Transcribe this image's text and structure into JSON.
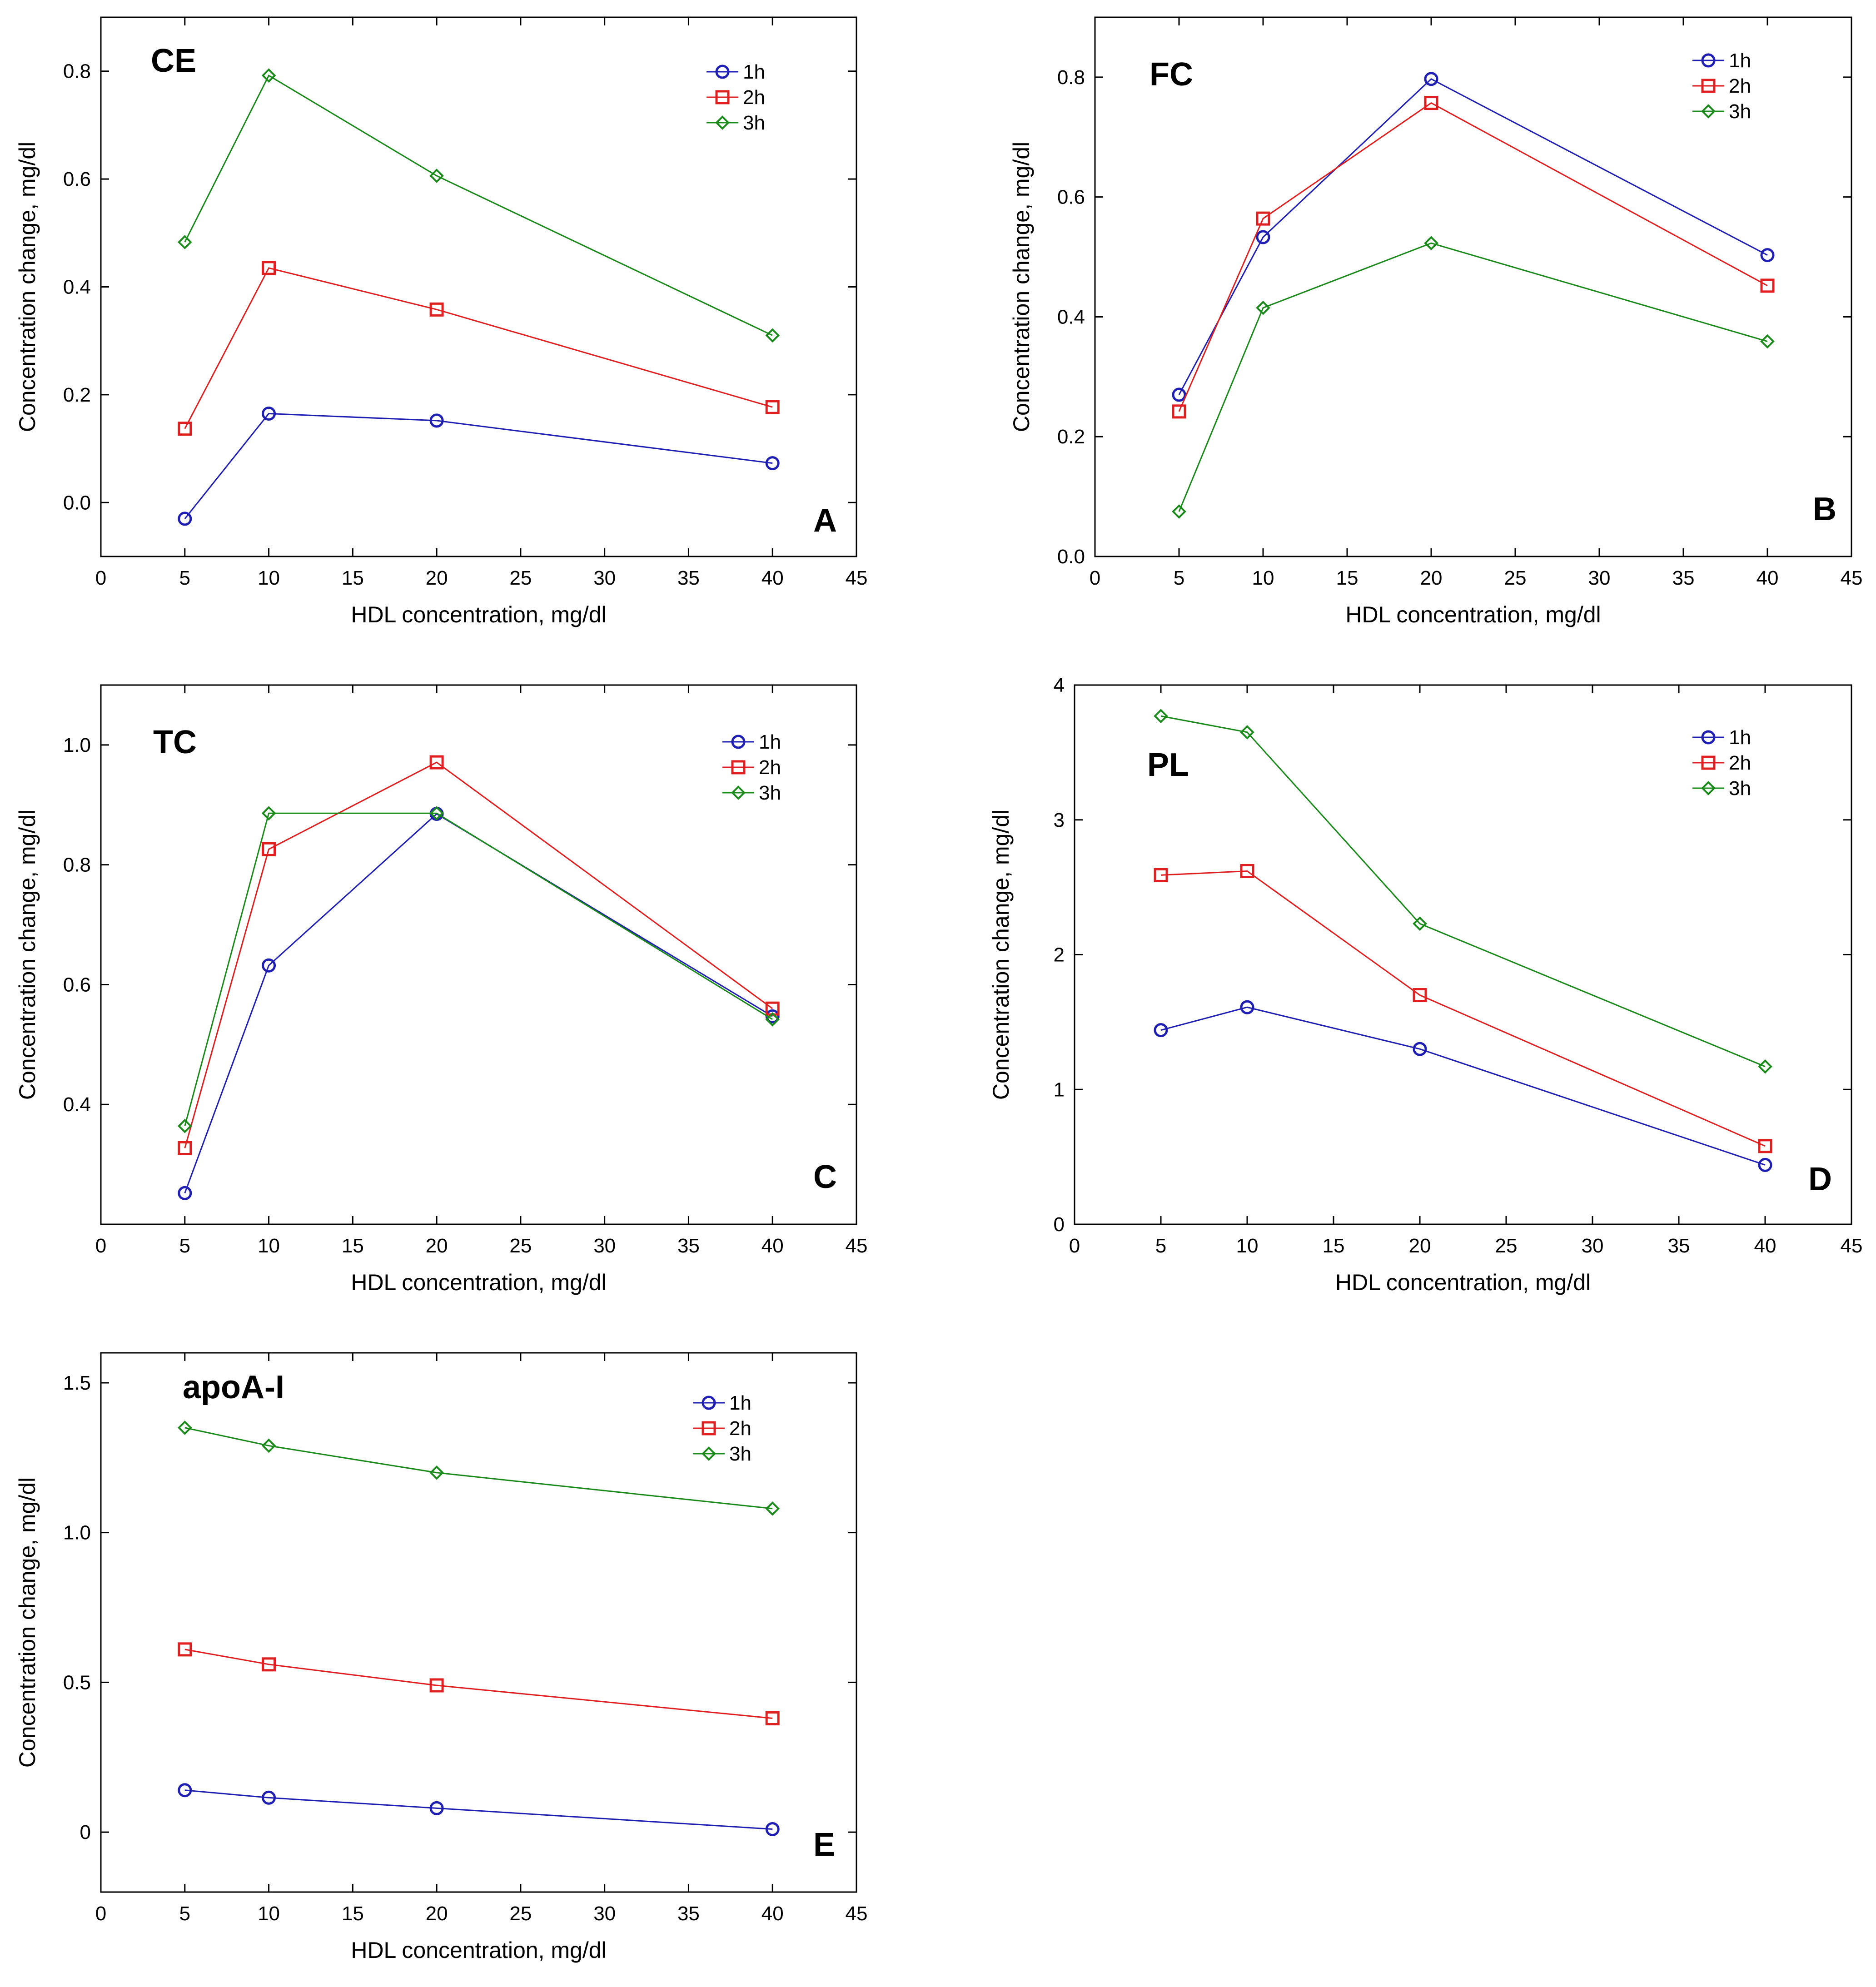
{
  "series_colors": {
    "1h": "#1f1fb4",
    "2h": "#e02020",
    "3h": "#1a8a1a"
  },
  "chart_data": [
    {
      "type": "line",
      "title": "CE",
      "letter": "A",
      "xlabel": "HDL concentration, mg/dl",
      "ylabel": "Concentration change, mg/dl",
      "xlim": [
        0,
        45
      ],
      "ylim": [
        -0.1,
        0.9
      ],
      "xticks": [
        "0",
        "5",
        "10",
        "15",
        "20",
        "25",
        "30",
        "35",
        "40",
        "45"
      ],
      "yticks": [
        "0.0",
        "0.2",
        "0.4",
        "0.6",
        "0.8"
      ],
      "x": [
        5,
        10,
        20,
        40
      ],
      "series": [
        {
          "name": "1h",
          "values": [
            -0.03,
            0.165,
            0.152,
            0.073
          ]
        },
        {
          "name": "2h",
          "values": [
            0.137,
            0.435,
            0.358,
            0.177
          ]
        },
        {
          "name": "3h",
          "values": [
            0.483,
            0.792,
            0.606,
            0.31
          ]
        }
      ],
      "legend": [
        "1h",
        "2h",
        "3h"
      ],
      "grid": false
    },
    {
      "type": "line",
      "title": "FC",
      "letter": "B",
      "xlabel": "HDL concentration, mg/dl",
      "ylabel": "Concentration change, mg/dl",
      "xlim": [
        0,
        45
      ],
      "ylim": [
        0.0,
        0.9
      ],
      "xticks": [
        "0",
        "5",
        "10",
        "15",
        "20",
        "25",
        "30",
        "35",
        "40",
        "45"
      ],
      "yticks": [
        "0.0",
        "0.2",
        "0.4",
        "0.6",
        "0.8"
      ],
      "x": [
        5,
        10,
        20,
        40
      ],
      "series": [
        {
          "name": "1h",
          "values": [
            0.27,
            0.533,
            0.797,
            0.503
          ]
        },
        {
          "name": "2h",
          "values": [
            0.242,
            0.564,
            0.757,
            0.452
          ]
        },
        {
          "name": "3h",
          "values": [
            0.075,
            0.415,
            0.523,
            0.359
          ]
        }
      ],
      "legend": [
        "1h",
        "2h",
        "3h"
      ],
      "grid": false
    },
    {
      "type": "line",
      "title": "TC",
      "letter": "C",
      "xlabel": "HDL concentration, mg/dl",
      "ylabel": "Concentration change, mg/dl",
      "xlim": [
        0,
        45
      ],
      "ylim": [
        0.2,
        1.1
      ],
      "xticks": [
        "0",
        "5",
        "10",
        "15",
        "20",
        "25",
        "30",
        "35",
        "40",
        "45"
      ],
      "yticks": [
        "0.4",
        "0.6",
        "0.8",
        "1.0"
      ],
      "x": [
        5,
        10,
        20,
        40
      ],
      "series": [
        {
          "name": "1h",
          "values": [
            0.252,
            0.632,
            0.885,
            0.547
          ]
        },
        {
          "name": "2h",
          "values": [
            0.327,
            0.826,
            0.971,
            0.56
          ]
        },
        {
          "name": "3h",
          "values": [
            0.364,
            0.886,
            0.886,
            0.542
          ]
        }
      ],
      "legend": [
        "1h",
        "2h",
        "3h"
      ],
      "grid": false
    },
    {
      "type": "line",
      "title": "PL",
      "letter": "D",
      "xlabel": "HDL concentration, mg/dl",
      "ylabel": "Concentration change, mg/dl",
      "xlim": [
        0,
        45
      ],
      "ylim": [
        0,
        4
      ],
      "xticks": [
        "0",
        "5",
        "10",
        "15",
        "20",
        "25",
        "30",
        "35",
        "40",
        "45"
      ],
      "yticks": [
        "0",
        "1",
        "2",
        "3",
        "4"
      ],
      "x": [
        5,
        10,
        20,
        40
      ],
      "series": [
        {
          "name": "1h",
          "values": [
            1.44,
            1.61,
            1.3,
            0.44
          ]
        },
        {
          "name": "2h",
          "values": [
            2.59,
            2.62,
            1.7,
            0.58
          ]
        },
        {
          "name": "3h",
          "values": [
            3.77,
            3.65,
            2.23,
            1.17
          ]
        }
      ],
      "legend": [
        "1h",
        "2h",
        "3h"
      ],
      "grid": false
    },
    {
      "type": "line",
      "title": "apoA-I",
      "letter": "E",
      "xlabel": "HDL concentration, mg/dl",
      "ylabel": "Concentration change, mg/dl",
      "xlim": [
        0,
        45
      ],
      "ylim": [
        -0.2,
        1.6
      ],
      "xticks": [
        "0",
        "5",
        "10",
        "15",
        "20",
        "25",
        "30",
        "35",
        "40",
        "45"
      ],
      "yticks": [
        "0",
        "0.5",
        "1.0",
        "1.5"
      ],
      "x": [
        5,
        10,
        20,
        40
      ],
      "series": [
        {
          "name": "1h",
          "values": [
            0.14,
            0.115,
            0.08,
            0.01
          ]
        },
        {
          "name": "2h",
          "values": [
            0.61,
            0.56,
            0.49,
            0.38
          ]
        },
        {
          "name": "3h",
          "values": [
            1.35,
            1.29,
            1.2,
            1.08
          ]
        }
      ],
      "legend": [
        "1h",
        "2h",
        "3h"
      ],
      "grid": false
    }
  ]
}
